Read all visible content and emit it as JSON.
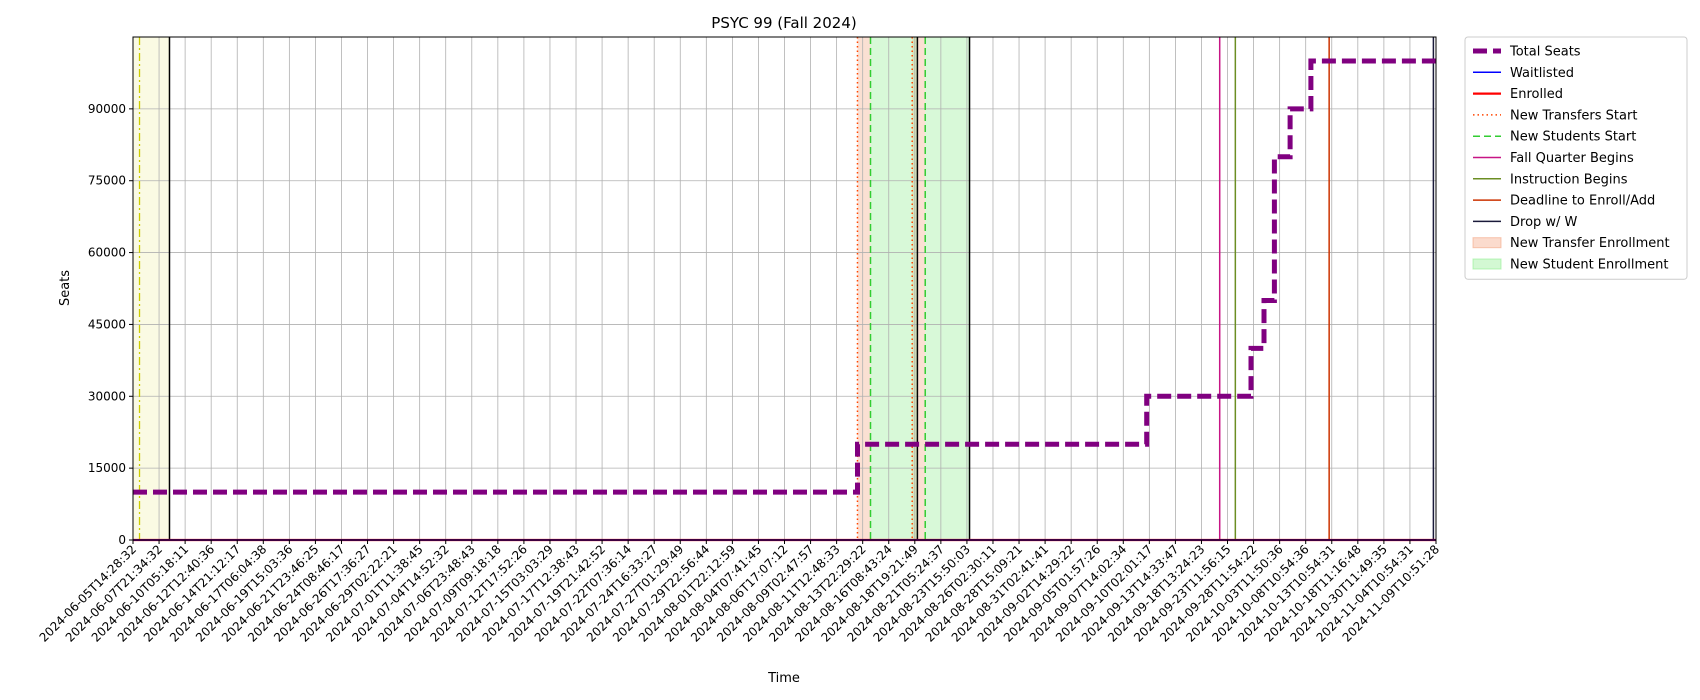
{
  "chart_data": {
    "type": "line",
    "title": "PSYC 99 (Fall 2024)",
    "xlabel": "Time",
    "ylabel": "Seats",
    "ylim": [
      0,
      105000
    ],
    "yticks": [
      0,
      15000,
      30000,
      45000,
      60000,
      75000,
      90000
    ],
    "grid": true,
    "legend_position": "outside-upper-right",
    "x_tick_labels": [
      "2024-06-05T14:28:32",
      "2024-06-07T21:34:32",
      "2024-06-10T05:18:11",
      "2024-06-12T12:40:36",
      "2024-06-14T21:12:17",
      "2024-06-17T06:04:38",
      "2024-06-19T15:03:36",
      "2024-06-21T23:46:25",
      "2024-06-24T08:46:17",
      "2024-06-26T17:36:27",
      "2024-06-29T02:22:21",
      "2024-07-01T11:38:45",
      "2024-07-04T14:52:32",
      "2024-07-06T23:48:43",
      "2024-07-09T09:18:18",
      "2024-07-12T17:52:26",
      "2024-07-15T03:03:29",
      "2024-07-17T12:38:43",
      "2024-07-19T21:42:52",
      "2024-07-22T07:36:14",
      "2024-07-24T16:33:27",
      "2024-07-27T01:29:49",
      "2024-07-29T22:56:44",
      "2024-08-01T22:12:59",
      "2024-08-04T07:41:45",
      "2024-08-06T17:07:12",
      "2024-08-09T02:47:57",
      "2024-08-11T12:48:33",
      "2024-08-13T22:29:22",
      "2024-08-16T08:43:24",
      "2024-08-18T19:21:49",
      "2024-08-21T05:24:37",
      "2024-08-23T15:50:03",
      "2024-08-26T02:30:11",
      "2024-08-28T15:09:21",
      "2024-08-31T02:41:41",
      "2024-09-02T14:29:22",
      "2024-09-05T01:57:26",
      "2024-09-07T14:02:34",
      "2024-09-10T02:01:17",
      "2024-09-13T14:33:47",
      "2024-09-18T13:24:23",
      "2024-09-23T11:56:15",
      "2024-09-28T11:54:22",
      "2024-10-03T11:50:36",
      "2024-10-08T10:54:36",
      "2024-10-13T10:54:31",
      "2024-10-18T11:16:48",
      "2024-10-30T11:49:35",
      "2024-11-04T10:54:31",
      "2024-11-09T10:51:28"
    ],
    "x_index_range": [
      0,
      50
    ],
    "series": [
      {
        "name": "Total Seats",
        "color": "#800080",
        "style": "dashed-thick",
        "x": [
          0,
          27.8,
          27.8,
          38.9,
          38.9,
          42.9,
          42.9,
          43.4,
          43.4,
          43.8,
          43.8,
          44.4,
          44.4,
          45.2,
          45.2,
          46.8,
          46.8,
          50
        ],
        "values": [
          10000,
          10000,
          20000,
          20000,
          30000,
          30000,
          40000,
          40000,
          50000,
          50000,
          80000,
          80000,
          90000,
          90000,
          100000,
          100000,
          100000,
          100000
        ]
      },
      {
        "name": "Waitlisted",
        "color": "#0000ff",
        "style": "solid",
        "x": [
          0,
          50
        ],
        "values": [
          0,
          0
        ]
      },
      {
        "name": "Enrolled",
        "color": "#ff0000",
        "style": "solid-thick",
        "x": [
          0,
          50
        ],
        "values": [
          0,
          0
        ]
      }
    ],
    "event_lines": [
      {
        "name": "New Transfers Start",
        "color": "#ff4500",
        "style": "dotted",
        "x": [
          27.8,
          29.9
        ]
      },
      {
        "name": "New Students Start",
        "color": "#32cd32",
        "style": "dashed",
        "x": [
          28.3,
          30.4
        ]
      },
      {
        "name": "Fall Quarter Begins",
        "color": "#c71585",
        "style": "solid",
        "x": [
          41.7
        ]
      },
      {
        "name": "Instruction Begins",
        "color": "#6b8e23",
        "style": "solid",
        "x": [
          42.3
        ]
      },
      {
        "name": "Deadline to Enroll/Add",
        "color": "#cc3300",
        "style": "solid",
        "x": [
          45.9
        ]
      },
      {
        "name": "Drop w/ W",
        "color": "#1a1a3a",
        "style": "solid",
        "x": [
          49.9
        ]
      }
    ],
    "unlabeled_lines": [
      {
        "color": "#000000",
        "style": "solid",
        "x": [
          1.4,
          30.1,
          32.1
        ]
      },
      {
        "color": "#cccc00",
        "style": "dashdot",
        "x": [
          0.25
        ]
      }
    ],
    "shaded_spans": [
      {
        "name": "New Transfer Enrollment",
        "color": "#f4a582",
        "x": [
          27.8,
          28.3
        ]
      },
      {
        "name": "New Transfer Enrollment",
        "color": "#f4a582",
        "x": [
          29.9,
          30.4
        ]
      },
      {
        "name": "New Student Enrollment",
        "color": "#90ee90",
        "x": [
          28.3,
          30.1
        ]
      },
      {
        "name": "New Student Enrollment",
        "color": "#90ee90",
        "x": [
          30.4,
          32.1
        ]
      },
      {
        "name": "",
        "color": "#f0f0b0",
        "x": [
          0,
          1.4
        ]
      }
    ],
    "legend": [
      {
        "label": "Total Seats",
        "kind": "line",
        "color": "#800080",
        "style": "dashed-thick"
      },
      {
        "label": "Waitlisted",
        "kind": "line",
        "color": "#0000ff",
        "style": "solid"
      },
      {
        "label": "Enrolled",
        "kind": "line",
        "color": "#ff0000",
        "style": "solid-thick"
      },
      {
        "label": "New Transfers Start",
        "kind": "line",
        "color": "#ff4500",
        "style": "dotted"
      },
      {
        "label": "New Students Start",
        "kind": "line",
        "color": "#32cd32",
        "style": "dashed"
      },
      {
        "label": "Fall Quarter Begins",
        "kind": "line",
        "color": "#c71585",
        "style": "solid"
      },
      {
        "label": "Instruction Begins",
        "kind": "line",
        "color": "#6b8e23",
        "style": "solid"
      },
      {
        "label": "Deadline to Enroll/Add",
        "kind": "line",
        "color": "#cc3300",
        "style": "solid"
      },
      {
        "label": "Drop w/ W",
        "kind": "line",
        "color": "#1a1a3a",
        "style": "solid"
      },
      {
        "label": "New Transfer Enrollment",
        "kind": "patch",
        "color": "#f4a582"
      },
      {
        "label": "New Student Enrollment",
        "kind": "patch",
        "color": "#90ee90"
      }
    ]
  }
}
